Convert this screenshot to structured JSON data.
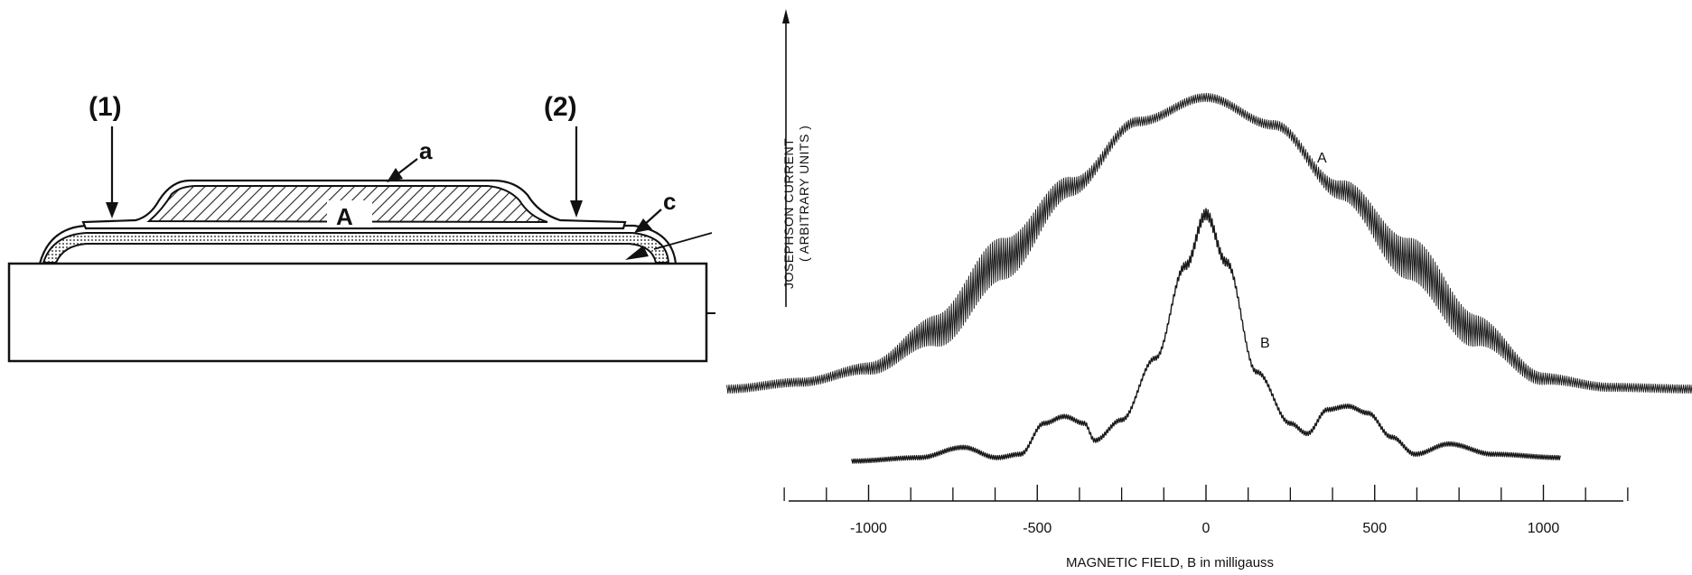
{
  "diagram": {
    "lead_labels": [
      "(1)",
      "(2)"
    ],
    "part_labels": {
      "film": "a",
      "oxide": "c",
      "electrode": "A"
    }
  },
  "chart_data": {
    "type": "line",
    "xlabel": "MAGNETIC FIELD,  B in milligauss",
    "ylabel_lines": [
      "JOSEPHSON CURRENT",
      "( ARBITRARY UNITS )"
    ],
    "xlim": [
      -1250,
      1250
    ],
    "xticks": [
      -1000,
      -500,
      0,
      500,
      1000
    ],
    "xtick_labels": [
      "-1000",
      "-500",
      "0",
      "500",
      "1000"
    ],
    "grid": false,
    "series": [
      {
        "name": "A",
        "x": [
          -1420,
          -1200,
          -1000,
          -800,
          -600,
          -400,
          -200,
          0,
          200,
          400,
          600,
          800,
          1000,
          1200,
          1450
        ],
        "y": [
          0.0,
          0.02,
          0.06,
          0.17,
          0.38,
          0.59,
          0.78,
          0.85,
          0.77,
          0.58,
          0.38,
          0.17,
          0.03,
          0.005,
          0.0
        ]
      },
      {
        "name": "B",
        "x": [
          -1050,
          -850,
          -720,
          -620,
          -550,
          -480,
          -420,
          -360,
          -330,
          -250,
          -150,
          -60,
          0,
          60,
          150,
          250,
          300,
          360,
          420,
          480,
          550,
          620,
          720,
          850,
          1050
        ],
        "y": [
          -0.21,
          -0.2,
          -0.17,
          -0.2,
          -0.19,
          -0.1,
          -0.08,
          -0.1,
          -0.15,
          -0.09,
          0.09,
          0.36,
          0.51,
          0.37,
          0.05,
          -0.1,
          -0.13,
          -0.06,
          -0.05,
          -0.07,
          -0.14,
          -0.19,
          -0.16,
          -0.19,
          -0.2
        ]
      }
    ]
  }
}
